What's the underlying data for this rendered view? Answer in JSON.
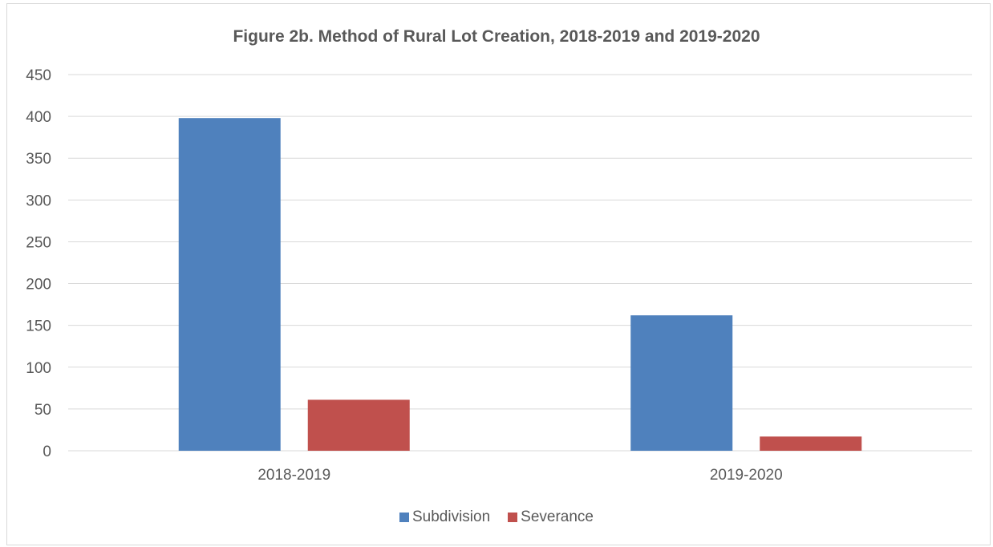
{
  "chart_data": {
    "type": "bar",
    "title": "Figure 2b.  Method of Rural Lot Creation, 2018-2019 and 2019-2020",
    "categories": [
      "2018-2019",
      "2019-2020"
    ],
    "series": [
      {
        "name": "Subdivision",
        "values": [
          398,
          162
        ],
        "color": "#4f81bd"
      },
      {
        "name": "Severance",
        "values": [
          61,
          17
        ],
        "color": "#c0504d"
      }
    ],
    "ylim": [
      0,
      450
    ],
    "yticks": [
      "0",
      "50",
      "100",
      "150",
      "200",
      "250",
      "300",
      "350",
      "400",
      "450"
    ],
    "grid": true,
    "legend_position": "bottom"
  }
}
